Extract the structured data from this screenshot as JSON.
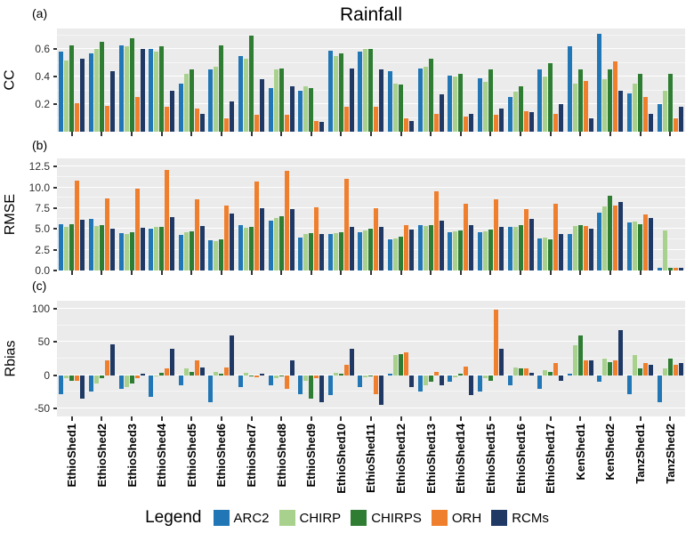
{
  "title": "Rainfall",
  "panel_labels": [
    "(a)",
    "(b)",
    "(c)"
  ],
  "legend": {
    "title": "Legend"
  },
  "series": [
    {
      "name": "ARC2",
      "color": "#2176B5"
    },
    {
      "name": "CHIRP",
      "color": "#A9D18E"
    },
    {
      "name": "CHIRPS",
      "color": "#2E7D32"
    },
    {
      "name": "ORH",
      "color": "#F07F2D"
    },
    {
      "name": "RCMs",
      "color": "#1F3864"
    }
  ],
  "categories": [
    "EthioShed1",
    "EthioShed2",
    "EthioShed3",
    "EthioShed4",
    "EthioShed5",
    "EthioShed6",
    "EthioShed7",
    "EthioShed8",
    "EthioShed9",
    "EthioShed10",
    "EthioShed11",
    "EthioShed12",
    "EthioShed13",
    "EthioShed14",
    "EthioShed15",
    "EthioShed16",
    "EthioShed17",
    "KenShed1",
    "KenShed2",
    "TanzShed1",
    "TanzShed2"
  ],
  "chart_data": [
    {
      "type": "bar",
      "title": "Rainfall",
      "ylabel": "CC",
      "xlabel": "",
      "ylim": [
        0,
        0.75
      ],
      "yticks": [
        0.2,
        0.4,
        0.6
      ],
      "decimals": 1,
      "grid": true,
      "legend_position": "bottom",
      "series": [
        {
          "name": "ARC2",
          "values": [
            0.58,
            0.57,
            0.63,
            0.6,
            0.35,
            0.45,
            0.55,
            0.32,
            0.3,
            0.59,
            0.58,
            0.44,
            0.46,
            0.41,
            0.39,
            0.25,
            0.45,
            0.62,
            0.71,
            0.28,
            0.2
          ]
        },
        {
          "name": "CHIRP",
          "values": [
            0.52,
            0.6,
            0.62,
            0.58,
            0.42,
            0.47,
            0.53,
            0.45,
            0.33,
            0.55,
            0.6,
            0.35,
            0.47,
            0.4,
            0.36,
            0.29,
            0.4,
            0.35,
            0.38,
            0.35,
            0.3
          ]
        },
        {
          "name": "CHIRPS",
          "values": [
            0.63,
            0.65,
            0.68,
            0.62,
            0.45,
            0.63,
            0.7,
            0.46,
            0.32,
            0.57,
            0.6,
            0.34,
            0.53,
            0.42,
            0.45,
            0.33,
            0.5,
            0.45,
            0.45,
            0.42,
            0.42
          ]
        },
        {
          "name": "ORH",
          "values": [
            0.21,
            0.19,
            0.25,
            0.18,
            0.17,
            0.1,
            0.12,
            0.12,
            0.08,
            0.18,
            0.18,
            0.1,
            0.13,
            0.11,
            0.12,
            0.15,
            0.13,
            0.37,
            0.51,
            0.25,
            0.1
          ]
        },
        {
          "name": "RCMs",
          "values": [
            0.53,
            0.44,
            0.6,
            0.3,
            0.13,
            0.22,
            0.38,
            0.33,
            0.07,
            0.46,
            0.45,
            0.08,
            0.27,
            0.13,
            0.17,
            0.14,
            0.2,
            0.1,
            0.3,
            0.13,
            0.18
          ]
        }
      ]
    },
    {
      "type": "bar",
      "ylabel": "RMSE",
      "xlabel": "",
      "ylim": [
        0,
        13.5
      ],
      "yticks": [
        0,
        2.5,
        5,
        7.5,
        10,
        12.5
      ],
      "decimals": 1,
      "grid": true,
      "series": [
        {
          "name": "ARC2",
          "values": [
            5.6,
            6.2,
            4.5,
            5.0,
            4.3,
            3.6,
            5.5,
            6.0,
            4.0,
            4.4,
            4.6,
            3.8,
            5.5,
            4.6,
            4.6,
            5.3,
            3.9,
            4.4,
            7.0,
            5.8,
            0.3
          ]
        },
        {
          "name": "CHIRP",
          "values": [
            5.2,
            5.4,
            4.4,
            5.2,
            4.6,
            3.5,
            5.1,
            6.3,
            4.4,
            4.5,
            4.8,
            3.9,
            5.4,
            4.7,
            4.7,
            5.2,
            4.0,
            5.4,
            7.7,
            5.9,
            4.8
          ]
        },
        {
          "name": "CHIRPS",
          "values": [
            5.6,
            5.5,
            4.6,
            5.3,
            4.7,
            3.8,
            5.3,
            6.5,
            4.5,
            4.6,
            5.0,
            4.1,
            5.5,
            4.8,
            4.9,
            5.5,
            3.8,
            5.5,
            9.0,
            5.6,
            0.3
          ]
        },
        {
          "name": "ORH",
          "values": [
            10.8,
            8.7,
            9.9,
            12.1,
            8.6,
            7.8,
            10.7,
            12.0,
            7.6,
            11.0,
            7.5,
            5.5,
            9.5,
            8.0,
            8.6,
            7.4,
            8.0,
            5.4,
            7.8,
            6.8,
            0.3
          ]
        },
        {
          "name": "RCMs",
          "values": [
            6.1,
            5.0,
            5.1,
            6.4,
            5.4,
            6.9,
            7.5,
            7.4,
            4.4,
            5.3,
            5.2,
            4.9,
            6.0,
            5.5,
            5.3,
            6.2,
            4.4,
            5.0,
            8.3,
            6.3,
            0.3
          ]
        }
      ]
    },
    {
      "type": "bar",
      "ylabel": "Rbias",
      "xlabel": "",
      "ylim": [
        -62,
        112
      ],
      "yticks": [
        -50,
        0,
        50,
        100
      ],
      "decimals": 0,
      "grid": true,
      "series": [
        {
          "name": "ARC2",
          "values": [
            -28,
            -25,
            -20,
            -33,
            -15,
            -40,
            -18,
            -15,
            -28,
            -30,
            -18,
            2,
            -25,
            -10,
            -25,
            -15,
            -20,
            2,
            -10,
            -28,
            -40
          ]
        },
        {
          "name": "CHIRP",
          "values": [
            -5,
            -12,
            -18,
            -2,
            10,
            5,
            3,
            -5,
            -8,
            3,
            -3,
            30,
            -15,
            -3,
            -5,
            12,
            8,
            45,
            25,
            30,
            10
          ]
        },
        {
          "name": "CHIRPS",
          "values": [
            -8,
            -5,
            -12,
            3,
            5,
            2,
            -2,
            -2,
            -35,
            2,
            -2,
            32,
            -10,
            2,
            -8,
            10,
            5,
            60,
            20,
            10,
            25
          ]
        },
        {
          "name": "ORH",
          "values": [
            -8,
            22,
            -4,
            10,
            22,
            12,
            -3,
            -20,
            -5,
            15,
            -28,
            35,
            5,
            13,
            98,
            10,
            18,
            22,
            22,
            18,
            15
          ]
        },
        {
          "name": "RCMs",
          "values": [
            -35,
            47,
            2,
            40,
            12,
            60,
            2,
            22,
            -40,
            40,
            -45,
            -18,
            -15,
            -30,
            40,
            3,
            -8,
            22,
            68,
            15,
            18
          ]
        }
      ]
    }
  ]
}
